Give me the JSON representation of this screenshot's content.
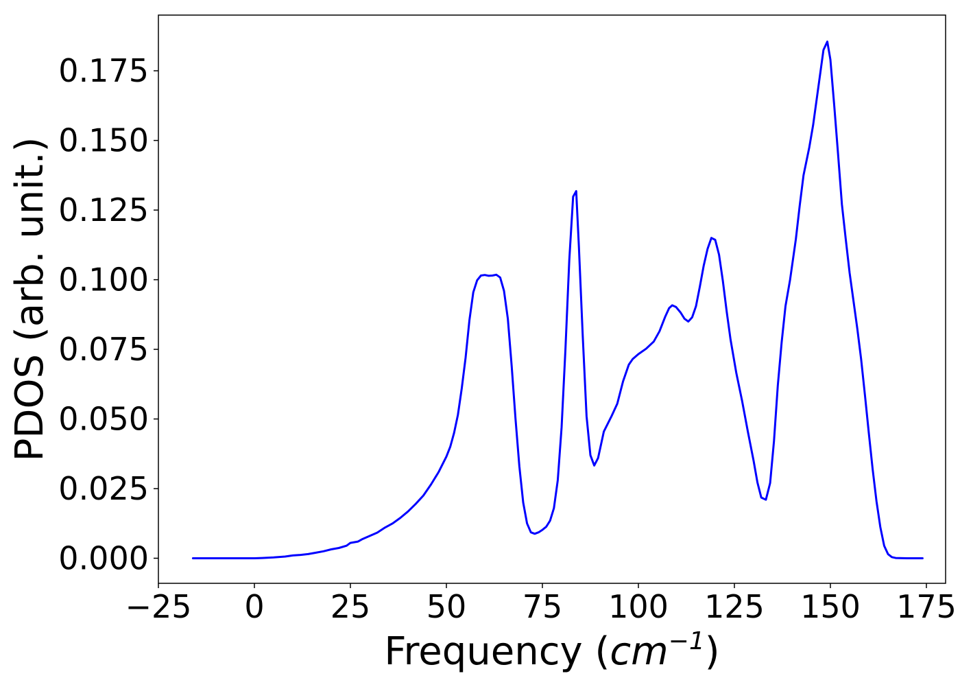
{
  "chart_data": {
    "type": "line",
    "title": "",
    "xlabel": "Frequency",
    "xlabel_unit_base": "cm",
    "xlabel_unit_exp": "−1",
    "ylabel": "PDOS (arb. unit.)",
    "xlim": [
      -25,
      180
    ],
    "ylim": [
      -0.009,
      0.195
    ],
    "xticks": [
      -25,
      0,
      25,
      50,
      75,
      100,
      125,
      150,
      175
    ],
    "xtick_labels": [
      "−25",
      "0",
      "25",
      "50",
      "75",
      "100",
      "125",
      "150",
      "175"
    ],
    "yticks": [
      0,
      0.025,
      0.05,
      0.075,
      0.1,
      0.125,
      0.15,
      0.175
    ],
    "ytick_labels": [
      "0.000",
      "0.025",
      "0.050",
      "0.075",
      "0.100",
      "0.125",
      "0.150",
      "0.175"
    ],
    "grid": false,
    "line_color": "#0000ff",
    "series": [
      {
        "points": [
          [
            -16,
            0
          ],
          [
            0,
            0
          ],
          [
            2,
            0.0001
          ],
          [
            5,
            0.0003
          ],
          [
            8,
            0.0006
          ],
          [
            10,
            0.001
          ],
          [
            12,
            0.0012
          ],
          [
            14,
            0.0015
          ],
          [
            16,
            0.002
          ],
          [
            18,
            0.0025
          ],
          [
            20,
            0.0032
          ],
          [
            22,
            0.0037
          ],
          [
            24,
            0.0045
          ],
          [
            25,
            0.0055
          ],
          [
            27,
            0.006
          ],
          [
            28,
            0.0068
          ],
          [
            30,
            0.008
          ],
          [
            32,
            0.0092
          ],
          [
            34,
            0.011
          ],
          [
            36,
            0.0125
          ],
          [
            38,
            0.0145
          ],
          [
            40,
            0.0168
          ],
          [
            42,
            0.0195
          ],
          [
            44,
            0.0225
          ],
          [
            46,
            0.0265
          ],
          [
            48,
            0.031
          ],
          [
            50,
            0.0365
          ],
          [
            51,
            0.04
          ],
          [
            52,
            0.045
          ],
          [
            53,
            0.0515
          ],
          [
            54,
            0.061
          ],
          [
            55,
            0.072
          ],
          [
            56,
            0.0855
          ],
          [
            57,
            0.0955
          ],
          [
            58,
            0.0998
          ],
          [
            59,
            0.1015
          ],
          [
            60,
            0.1017
          ],
          [
            61,
            0.1014
          ],
          [
            62,
            0.1015
          ],
          [
            63,
            0.1018
          ],
          [
            64,
            0.1008
          ],
          [
            65,
            0.096
          ],
          [
            66,
            0.086
          ],
          [
            67,
            0.069
          ],
          [
            68,
            0.05
          ],
          [
            69,
            0.033
          ],
          [
            70,
            0.02
          ],
          [
            71,
            0.0125
          ],
          [
            72,
            0.0093
          ],
          [
            73,
            0.0088
          ],
          [
            74,
            0.0093
          ],
          [
            75,
            0.0102
          ],
          [
            76,
            0.0113
          ],
          [
            77,
            0.0135
          ],
          [
            78,
            0.018
          ],
          [
            79,
            0.028
          ],
          [
            80,
            0.047
          ],
          [
            81,
            0.075
          ],
          [
            82,
            0.107
          ],
          [
            83,
            0.1298
          ],
          [
            83.8,
            0.1318
          ],
          [
            84.5,
            0.112
          ],
          [
            85.5,
            0.08
          ],
          [
            86.5,
            0.051
          ],
          [
            87.5,
            0.037
          ],
          [
            88.5,
            0.0333
          ],
          [
            89.5,
            0.036
          ],
          [
            91,
            0.0455
          ],
          [
            93,
            0.051
          ],
          [
            94.5,
            0.0555
          ],
          [
            96,
            0.0635
          ],
          [
            97.5,
            0.0695
          ],
          [
            98.5,
            0.0715
          ],
          [
            100,
            0.0733
          ],
          [
            102,
            0.0752
          ],
          [
            104,
            0.0778
          ],
          [
            105.5,
            0.0815
          ],
          [
            107,
            0.0868
          ],
          [
            108,
            0.0898
          ],
          [
            108.8,
            0.0908
          ],
          [
            109.8,
            0.0902
          ],
          [
            111,
            0.0882
          ],
          [
            112,
            0.086
          ],
          [
            113,
            0.085
          ],
          [
            114,
            0.0865
          ],
          [
            115,
            0.0905
          ],
          [
            116,
            0.0975
          ],
          [
            117,
            0.105
          ],
          [
            118,
            0.111
          ],
          [
            119,
            0.115
          ],
          [
            120,
            0.1143
          ],
          [
            121,
            0.109
          ],
          [
            122,
            0.0995
          ],
          [
            123,
            0.0885
          ],
          [
            124,
            0.0785
          ],
          [
            125.5,
            0.0665
          ],
          [
            127,
            0.0565
          ],
          [
            128.5,
            0.0455
          ],
          [
            130,
            0.035
          ],
          [
            131,
            0.0272
          ],
          [
            132,
            0.0218
          ],
          [
            133.2,
            0.021
          ],
          [
            134.3,
            0.027
          ],
          [
            135.3,
            0.042
          ],
          [
            136.3,
            0.062
          ],
          [
            137.3,
            0.0775
          ],
          [
            138.3,
            0.0905
          ],
          [
            139.5,
            0.1
          ],
          [
            141,
            0.1145
          ],
          [
            142,
            0.1265
          ],
          [
            143,
            0.1375
          ],
          [
            144.5,
            0.1475
          ],
          [
            145.5,
            0.1555
          ],
          [
            146.5,
            0.1655
          ],
          [
            147.5,
            0.1755
          ],
          [
            148.2,
            0.1825
          ],
          [
            149.2,
            0.1855
          ],
          [
            150,
            0.179
          ],
          [
            151,
            0.1625
          ],
          [
            152,
            0.145
          ],
          [
            153,
            0.127
          ],
          [
            154,
            0.1145
          ],
          [
            155,
            0.1025
          ],
          [
            156,
            0.0925
          ],
          [
            157,
            0.0825
          ],
          [
            158,
            0.0715
          ],
          [
            159,
            0.0585
          ],
          [
            160,
            0.045
          ],
          [
            161,
            0.032
          ],
          [
            162,
            0.0205
          ],
          [
            163,
            0.0112
          ],
          [
            164,
            0.0045
          ],
          [
            165,
            0.0015
          ],
          [
            166,
            0.0004
          ],
          [
            167,
            0.0001
          ],
          [
            170,
            0
          ],
          [
            174,
            0
          ]
        ]
      }
    ]
  }
}
